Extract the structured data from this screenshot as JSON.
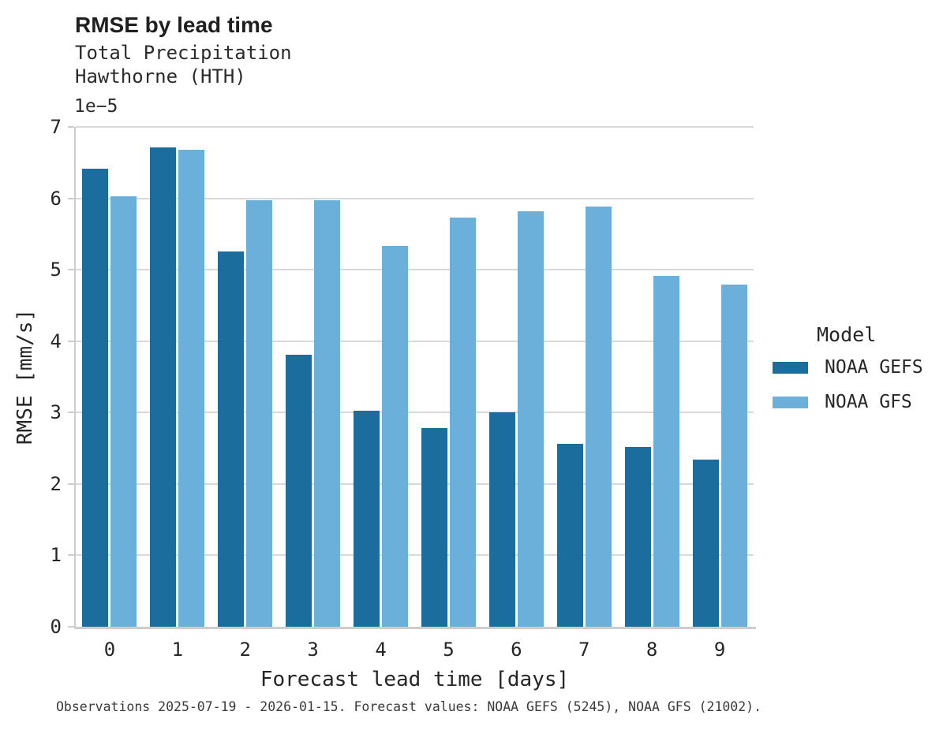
{
  "header": {
    "title": "RMSE by lead time",
    "subtitle_line1": "Total Precipitation",
    "subtitle_line2": "Hawthorne (HTH)"
  },
  "axes": {
    "offset_text": "1e−5",
    "xlabel": "Forecast lead time [days]",
    "ylabel": "RMSE [mm/s]"
  },
  "legend": {
    "title": "Model"
  },
  "caption": "Observations 2025-07-19 - 2026-01-15. Forecast values: NOAA GEFS (5245), NOAA GFS (21002).",
  "colors": {
    "noaa_gefs": "#1B6D9D",
    "noaa_gfs": "#6BB0DA",
    "gridline": "#d9d9d9",
    "spine": "#cdcdcd"
  },
  "chart_data": {
    "type": "bar",
    "title": "RMSE by lead time",
    "subtitle": [
      "Total Precipitation",
      "Hawthorne (HTH)"
    ],
    "xlabel": "Forecast lead time [days]",
    "ylabel": "RMSE [mm/s]",
    "value_scale_note": "y values are ×1e-5 mm/s",
    "categories": [
      "0",
      "1",
      "2",
      "3",
      "4",
      "5",
      "6",
      "7",
      "8",
      "9"
    ],
    "series": [
      {
        "name": "NOAA GEFS",
        "color": "#1B6D9D",
        "values": [
          6.41,
          6.71,
          5.26,
          3.81,
          3.03,
          2.78,
          3.0,
          2.56,
          2.52,
          2.34
        ]
      },
      {
        "name": "NOAA GFS",
        "color": "#6BB0DA",
        "values": [
          6.03,
          6.68,
          5.97,
          5.97,
          5.33,
          5.73,
          5.82,
          5.88,
          4.91,
          4.79
        ]
      }
    ],
    "ylim": [
      0,
      7
    ],
    "yticks": [
      0,
      1,
      2,
      3,
      4,
      5,
      6,
      7
    ],
    "grid": "horizontal",
    "legend_title": "Model",
    "legend_position": "right"
  }
}
